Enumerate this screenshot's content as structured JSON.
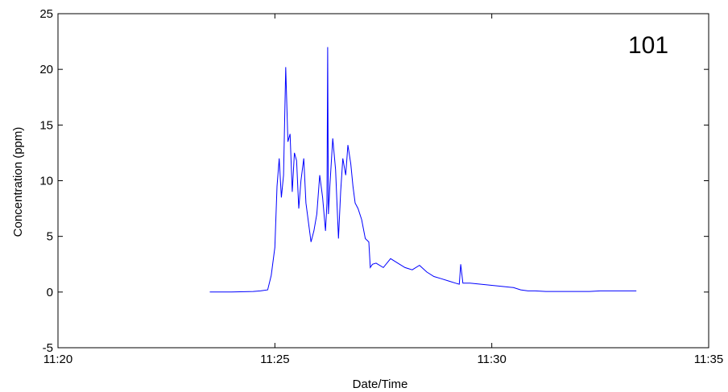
{
  "chart_data": {
    "type": "line",
    "xlabel": "Date/Time",
    "ylabel": "Concentration (ppm)",
    "annotation": "101",
    "xlim": [
      "11:20",
      "11:35"
    ],
    "ylim": [
      -5,
      25
    ],
    "xticks": [
      "11:20",
      "11:25",
      "11:30",
      "11:35"
    ],
    "yticks": [
      "-5",
      "0",
      "5",
      "10",
      "15",
      "20",
      "25"
    ],
    "grid": false,
    "line_color": "#0000ff",
    "series": [
      {
        "x": [
          "11:23:30",
          "11:24:00",
          "11:24:30",
          "11:24:40",
          "11:24:50",
          "11:24:55",
          "11:25:00",
          "11:25:03",
          "11:25:06",
          "11:25:09",
          "11:25:12",
          "11:25:15",
          "11:25:18",
          "11:25:21",
          "11:25:24",
          "11:25:27",
          "11:25:30",
          "11:25:33",
          "11:25:36",
          "11:25:40",
          "11:25:43",
          "11:25:46",
          "11:25:50",
          "11:25:54",
          "11:25:58",
          "11:26:02",
          "11:26:06",
          "11:26:10",
          "11:26:12",
          "11:26:13",
          "11:26:14",
          "11:26:16",
          "11:26:20",
          "11:26:24",
          "11:26:28",
          "11:26:31",
          "11:26:34",
          "11:26:38",
          "11:26:41",
          "11:26:45",
          "11:26:48",
          "11:26:51",
          "11:26:55",
          "11:27:00",
          "11:27:05",
          "11:27:10",
          "11:27:12",
          "11:27:15",
          "11:27:20",
          "11:27:30",
          "11:27:40",
          "11:27:50",
          "11:28:00",
          "11:28:10",
          "11:28:20",
          "11:28:30",
          "11:28:40",
          "11:28:50",
          "11:29:00",
          "11:29:10",
          "11:29:15",
          "11:29:17",
          "11:29:20",
          "11:29:30",
          "11:29:45",
          "11:30:00",
          "11:30:15",
          "11:30:30",
          "11:30:40",
          "11:30:50",
          "11:31:00",
          "11:31:15",
          "11:31:30",
          "11:31:45",
          "11:32:00",
          "11:32:15",
          "11:32:30",
          "11:32:45",
          "11:33:00",
          "11:33:20"
        ],
        "values": [
          0.0,
          0.0,
          0.05,
          0.1,
          0.2,
          1.5,
          4.0,
          9.5,
          12.0,
          8.5,
          10.5,
          20.2,
          13.5,
          14.2,
          9.0,
          12.5,
          11.8,
          7.5,
          10.0,
          12.0,
          8.0,
          6.5,
          4.5,
          5.5,
          7.0,
          10.5,
          8.5,
          5.5,
          8.0,
          22.0,
          7.0,
          9.5,
          13.8,
          11.0,
          4.8,
          9.0,
          12.0,
          10.5,
          13.2,
          11.5,
          9.5,
          8.0,
          7.5,
          6.5,
          4.8,
          4.5,
          2.2,
          2.5,
          2.6,
          2.2,
          3.0,
          2.6,
          2.2,
          2.0,
          2.4,
          1.8,
          1.4,
          1.2,
          1.0,
          0.8,
          0.7,
          2.5,
          0.8,
          0.8,
          0.7,
          0.6,
          0.5,
          0.4,
          0.2,
          0.1,
          0.1,
          0.05,
          0.05,
          0.05,
          0.05,
          0.05,
          0.1,
          0.1,
          0.1,
          0.1
        ]
      }
    ]
  }
}
